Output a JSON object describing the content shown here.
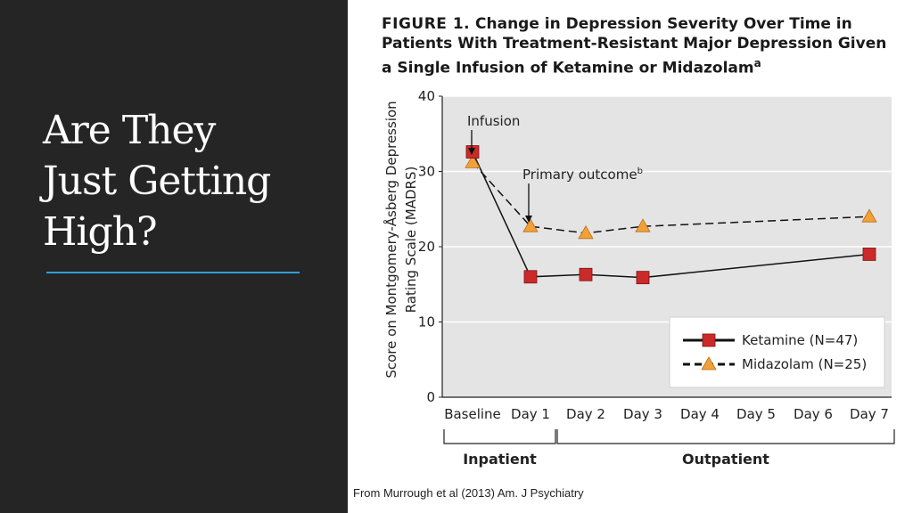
{
  "slide": {
    "title_lines": [
      "Are They",
      "Just Getting",
      "High?"
    ],
    "citation": "From Murrough et al (2013) Am. J Psychiatry",
    "accent_color": "#2e9fd6",
    "background_color": "#252525"
  },
  "figure": {
    "label": "FIGURE 1.",
    "caption": "Change in Depression Severity Over Time in Patients With Treatment-Resistant Major Depression Given a Single Infusion of Ketamine or Midazolam",
    "caption_superscript": "a"
  },
  "chart_data": {
    "type": "line",
    "ylabel_lines": [
      "Score on Montgomery-Åsberg Depression",
      "Rating Scale (MADRS)"
    ],
    "ylim": [
      0,
      40
    ],
    "yticks": [
      0,
      10,
      20,
      30,
      40
    ],
    "categories": [
      "Baseline",
      "Day 1",
      "Day 2",
      "Day 3",
      "Day 4",
      "Day 5",
      "Day 6",
      "Day 7"
    ],
    "series": [
      {
        "name": "Ketamine (N=47)",
        "color": "#cc2a2a",
        "marker": "square",
        "line": "solid",
        "values": [
          32.6,
          16.0,
          16.3,
          15.9,
          null,
          null,
          null,
          19.0
        ]
      },
      {
        "name": "Midazolam (N=25)",
        "color": "#f2a03a",
        "marker": "triangle",
        "line": "dashed",
        "values": [
          31.2,
          22.7,
          21.8,
          22.7,
          null,
          null,
          null,
          24.0
        ]
      }
    ],
    "annotations": [
      {
        "text": "Infusion",
        "at_category": "Baseline"
      },
      {
        "text": "Primary outcome",
        "superscript": "b",
        "at_category": "Day 1"
      }
    ],
    "groups": [
      {
        "label": "Inpatient",
        "from": "Baseline",
        "to": "Day 1"
      },
      {
        "label": "Outpatient",
        "from": "Day 2",
        "to": "Day 7"
      }
    ],
    "grid": true,
    "legend_position": "bottom-right"
  }
}
